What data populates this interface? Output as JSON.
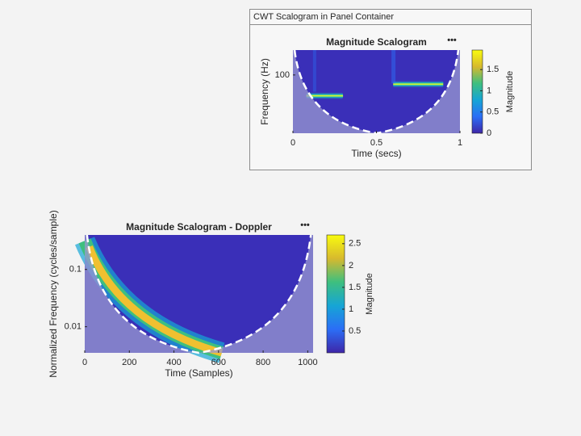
{
  "panel": {
    "title": "CWT Scalogram in Panel Container"
  },
  "chart_data": [
    {
      "type": "scalogram",
      "title": "Magnitude Scalogram",
      "xlabel": "Time (secs)",
      "ylabel": "Frequency (Hz)",
      "xlim": [
        0,
        1
      ],
      "xticks": [
        0,
        0.5,
        1
      ],
      "ylim": [
        9,
        280
      ],
      "yticks": [
        100
      ],
      "yscale": "log",
      "colorbar": {
        "label": "Magnitude",
        "lim": [
          0,
          1.96
        ],
        "ticks": [
          0,
          0.5,
          1,
          1.5
        ]
      }
    },
    {
      "type": "scalogram",
      "title": "Magnitude Scalogram - Doppler",
      "xlabel": "Time (Samples)",
      "ylabel": "Normalized Frequency  (cycles/sample)",
      "xlim": [
        0,
        1024
      ],
      "xticks": [
        0,
        200,
        400,
        600,
        800,
        1000
      ],
      "ylim": [
        0.0035,
        0.4
      ],
      "yticks": [
        0.01,
        0.1
      ],
      "yscale": "log",
      "colorbar": {
        "label": "Magnitude",
        "lim": [
          0,
          2.7
        ],
        "ticks": [
          0.5,
          1,
          1.5,
          2,
          2.5
        ]
      }
    }
  ]
}
